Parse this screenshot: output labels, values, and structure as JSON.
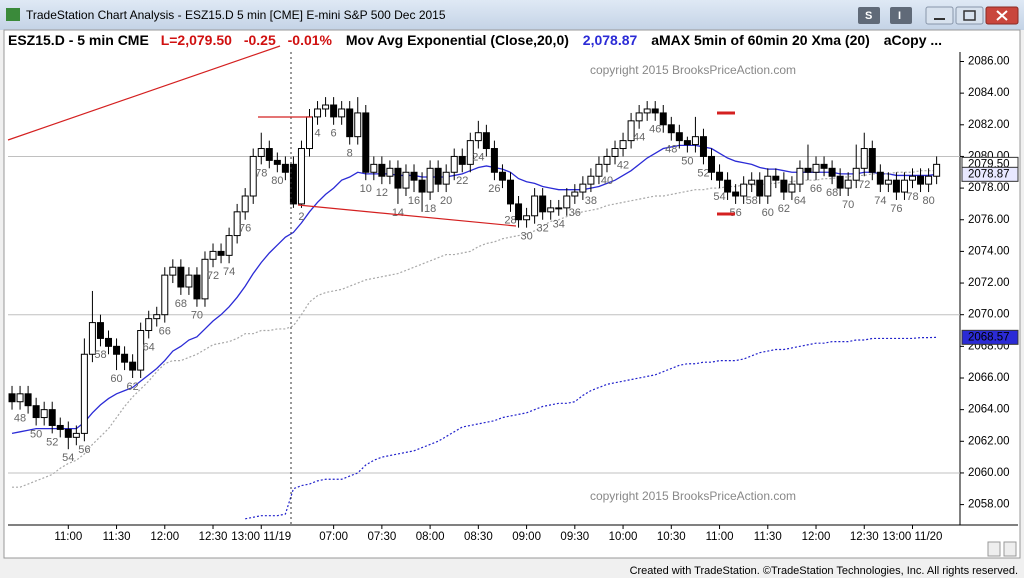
{
  "window": {
    "title": "TradeStation Chart Analysis - ESZ15.D 5 min [CME] E-mini S&P 500 Dec 2015",
    "footer": "Created with TradeStation. ©TradeStation Technologies, Inc. All rights reserved."
  },
  "header": {
    "symbol": "ESZ15.D - 5 min  CME",
    "last": "L=2,079.50",
    "change": "-0.25",
    "change_pct": "-0.01%",
    "ema_value": "2,078.87"
  },
  "chart_data": {
    "type": "candlestick",
    "watermark": "copyright 2015 BrooksPriceAction.com",
    "ylim": [
      2056.9,
      2086.6
    ],
    "yticks": [
      {
        "value": 2058,
        "label": "2058.00"
      },
      {
        "value": 2060,
        "label": "2060.00"
      },
      {
        "value": 2062,
        "label": "2062.00"
      },
      {
        "value": 2064,
        "label": "2064.00"
      },
      {
        "value": 2066,
        "label": "2066.00"
      },
      {
        "value": 2068,
        "label": "2068.00"
      },
      {
        "value": 2070,
        "label": "2070.00"
      },
      {
        "value": 2072,
        "label": "2072.00"
      },
      {
        "value": 2074,
        "label": "2074.00"
      },
      {
        "value": 2076,
        "label": "2076.00"
      },
      {
        "value": 2078,
        "label": "2078.00"
      },
      {
        "value": 2080,
        "label": "2080.00"
      },
      {
        "value": 2082,
        "label": "2082.00"
      },
      {
        "value": 2084,
        "label": "2084.00"
      },
      {
        "value": 2086,
        "label": "2086.00"
      }
    ],
    "grid_lines": [
      2060,
      2070,
      2080
    ],
    "categories": [
      null,
      null,
      null,
      null,
      null,
      null,
      null,
      "11:00",
      null,
      null,
      null,
      null,
      null,
      "11:30",
      null,
      null,
      null,
      null,
      null,
      "12:00",
      null,
      null,
      null,
      null,
      null,
      "12:30",
      null,
      null,
      null,
      null,
      null,
      "13:00 11/19",
      null,
      null,
      null,
      null,
      null,
      null,
      null,
      null,
      "07:00",
      null,
      null,
      null,
      null,
      null,
      "07:30",
      null,
      null,
      null,
      null,
      null,
      "08:00",
      null,
      null,
      null,
      null,
      null,
      "08:30",
      null,
      null,
      null,
      null,
      null,
      "09:00",
      null,
      null,
      null,
      null,
      null,
      "09:30",
      null,
      null,
      null,
      null,
      null,
      "10:00",
      null,
      null,
      null,
      null,
      null,
      "10:30",
      null,
      null,
      null,
      null,
      null,
      "11:00",
      null,
      null,
      null,
      null,
      null,
      "11:30",
      null,
      null,
      null,
      null,
      null,
      "12:00",
      null,
      null,
      null,
      null,
      null,
      "12:30",
      null,
      null,
      null,
      null,
      null,
      "13:00 11/20",
      null,
      null,
      null
    ],
    "ohlc": {
      "open": [
        2065.0,
        2064.5,
        2065.0,
        2064.25,
        2063.5,
        2064.0,
        2063.0,
        2062.75,
        2062.25,
        2062.5,
        2067.5,
        2069.5,
        2068.5,
        2068.0,
        2067.5,
        2067.0,
        2066.5,
        2069.0,
        2069.75,
        2070.0,
        2072.5,
        2073.0,
        2071.75,
        2072.5,
        2071.0,
        2073.5,
        2074.0,
        2073.75,
        2075.0,
        2076.5,
        2077.5,
        2080.0,
        2080.5,
        2079.75,
        2079.5,
        2079.5,
        2077.0,
        2080.5,
        2082.5,
        2083.0,
        2083.25,
        2082.5,
        2083.0,
        2081.25,
        2082.75,
        2079.0,
        2079.5,
        2078.75,
        2079.25,
        2078.0,
        2079.0,
        2078.5,
        2077.75,
        2079.25,
        2078.25,
        2079.0,
        2080.0,
        2079.5,
        2081.0,
        2081.5,
        2080.5,
        2079.0,
        2078.5,
        2077.0,
        2076.0,
        2076.25,
        2077.5,
        2076.5,
        2076.75,
        2076.75,
        2077.5,
        2077.75,
        2078.25,
        2078.75,
        2079.5,
        2080.0,
        2080.5,
        2081.0,
        2082.25,
        2082.75,
        2083.0,
        2082.75,
        2082.0,
        2081.5,
        2081.0,
        2080.75,
        2081.25,
        2080.0,
        2079.0,
        2078.5,
        2077.75,
        2077.5,
        2078.25,
        2078.5,
        2077.5,
        2078.75,
        2078.5,
        2077.75,
        2078.25,
        2079.25,
        2079.0,
        2079.5,
        2079.25,
        2078.75,
        2078.0,
        2078.5,
        2079.25,
        2080.5,
        2079.0,
        2078.25,
        2078.5,
        2077.75,
        2078.5,
        2078.75,
        2078.25,
        2078.75
      ],
      "high": [
        2065.5,
        2065.5,
        2065.5,
        2064.75,
        2064.5,
        2064.5,
        2063.5,
        2063.25,
        2063.0,
        2068.5,
        2071.5,
        2070.0,
        2069.0,
        2068.5,
        2068.0,
        2067.5,
        2069.5,
        2070.25,
        2070.5,
        2073.0,
        2073.5,
        2073.5,
        2073.0,
        2073.0,
        2074.0,
        2074.5,
        2074.5,
        2075.5,
        2077.0,
        2078.0,
        2080.5,
        2081.5,
        2081.0,
        2080.25,
        2080.0,
        2080.0,
        2081.0,
        2083.0,
        2083.5,
        2083.75,
        2083.75,
        2083.5,
        2083.5,
        2083.75,
        2083.25,
        2080.0,
        2080.0,
        2079.75,
        2079.75,
        2079.5,
        2079.5,
        2079.0,
        2079.75,
        2079.75,
        2079.5,
        2080.5,
        2080.5,
        2081.5,
        2082.25,
        2082.0,
        2081.0,
        2079.5,
        2079.0,
        2077.5,
        2076.75,
        2078.0,
        2078.0,
        2077.25,
        2077.25,
        2078.0,
        2078.25,
        2078.75,
        2079.25,
        2080.0,
        2080.5,
        2081.0,
        2081.5,
        2082.75,
        2083.25,
        2083.5,
        2083.5,
        2083.25,
        2082.5,
        2082.0,
        2081.25,
        2082.5,
        2081.75,
        2080.5,
        2079.5,
        2079.0,
        2078.25,
        2078.75,
        2079.0,
        2079.0,
        2079.25,
        2079.25,
        2079.0,
        2078.75,
        2079.75,
        2080.75,
        2080.0,
        2080.0,
        2079.75,
        2079.25,
        2079.0,
        2080.75,
        2081.5,
        2081.0,
        2079.5,
        2079.0,
        2079.0,
        2079.0,
        2079.25,
        2079.25,
        2079.25,
        2080.0
      ],
      "low": [
        2064.0,
        2064.0,
        2063.75,
        2063.0,
        2063.0,
        2062.5,
        2062.25,
        2061.5,
        2061.75,
        2062.0,
        2067.0,
        2068.0,
        2067.5,
        2066.5,
        2066.5,
        2066.0,
        2066.0,
        2068.5,
        2069.25,
        2069.5,
        2072.0,
        2071.25,
        2071.25,
        2070.5,
        2070.5,
        2073.0,
        2073.25,
        2073.25,
        2074.5,
        2076.0,
        2077.0,
        2079.5,
        2079.25,
        2079.0,
        2078.5,
        2076.75,
        2076.75,
        2080.0,
        2082.0,
        2082.5,
        2082.0,
        2082.0,
        2080.75,
        2080.75,
        2078.5,
        2078.5,
        2078.25,
        2078.25,
        2077.0,
        2077.5,
        2077.75,
        2076.5,
        2077.25,
        2077.75,
        2077.75,
        2078.5,
        2079.0,
        2079.0,
        2080.5,
        2080.0,
        2078.5,
        2078.0,
        2076.5,
        2075.5,
        2075.5,
        2075.75,
        2076.0,
        2076.0,
        2076.25,
        2076.25,
        2077.0,
        2077.25,
        2077.75,
        2078.25,
        2079.0,
        2079.5,
        2080.0,
        2080.5,
        2081.75,
        2082.25,
        2082.25,
        2081.5,
        2081.0,
        2080.5,
        2080.25,
        2080.25,
        2079.5,
        2078.5,
        2078.0,
        2077.25,
        2077.0,
        2077.0,
        2077.75,
        2077.0,
        2077.0,
        2078.0,
        2077.25,
        2077.25,
        2077.75,
        2078.5,
        2078.5,
        2078.75,
        2078.25,
        2077.5,
        2077.5,
        2078.0,
        2078.75,
        2078.5,
        2077.75,
        2077.75,
        2077.25,
        2077.25,
        2078.0,
        2077.75,
        2077.75,
        2078.25
      ],
      "close": [
        2064.5,
        2065.0,
        2064.25,
        2063.5,
        2064.0,
        2063.0,
        2062.75,
        2062.25,
        2062.5,
        2067.5,
        2069.5,
        2068.5,
        2068.0,
        2067.5,
        2067.0,
        2066.5,
        2069.0,
        2069.75,
        2070.0,
        2072.5,
        2073.0,
        2071.75,
        2072.5,
        2071.0,
        2073.5,
        2074.0,
        2073.75,
        2075.0,
        2076.5,
        2077.5,
        2080.0,
        2080.5,
        2079.75,
        2079.5,
        2079.0,
        2077.0,
        2080.5,
        2082.5,
        2083.0,
        2083.25,
        2082.5,
        2083.0,
        2081.25,
        2082.75,
        2079.0,
        2079.5,
        2078.75,
        2079.25,
        2078.0,
        2079.0,
        2078.5,
        2077.75,
        2079.25,
        2078.25,
        2079.0,
        2080.0,
        2079.5,
        2081.0,
        2081.5,
        2080.5,
        2079.0,
        2078.5,
        2077.0,
        2076.0,
        2076.25,
        2077.5,
        2076.5,
        2076.75,
        2076.75,
        2077.5,
        2077.75,
        2078.25,
        2078.75,
        2079.5,
        2080.0,
        2080.5,
        2081.0,
        2082.25,
        2082.75,
        2083.0,
        2082.75,
        2082.0,
        2081.5,
        2081.0,
        2080.75,
        2081.25,
        2080.0,
        2079.0,
        2078.5,
        2077.75,
        2077.5,
        2078.25,
        2078.5,
        2077.5,
        2078.75,
        2078.5,
        2077.75,
        2078.25,
        2079.25,
        2079.0,
        2079.5,
        2079.25,
        2078.75,
        2078.0,
        2078.5,
        2079.25,
        2080.5,
        2079.0,
        2078.25,
        2078.5,
        2077.75,
        2078.5,
        2078.75,
        2078.25,
        2078.75,
        2079.5
      ]
    },
    "up_color": "#ffffff",
    "down_color": "#000000",
    "wick_color": "#000000",
    "bar_labels": [
      null,
      48,
      null,
      50,
      null,
      52,
      null,
      54,
      null,
      56,
      null,
      58,
      null,
      60,
      null,
      62,
      null,
      64,
      null,
      66,
      null,
      68,
      null,
      70,
      null,
      72,
      null,
      74,
      null,
      76,
      null,
      78,
      null,
      80,
      null,
      null,
      2,
      null,
      4,
      null,
      6,
      null,
      8,
      null,
      10,
      null,
      12,
      null,
      14,
      null,
      16,
      null,
      18,
      null,
      20,
      null,
      22,
      null,
      24,
      null,
      26,
      null,
      28,
      null,
      30,
      null,
      32,
      null,
      34,
      null,
      36,
      null,
      38,
      null,
      40,
      null,
      42,
      null,
      44,
      null,
      46,
      null,
      48,
      null,
      50,
      null,
      52,
      null,
      54,
      null,
      56,
      null,
      58,
      null,
      60,
      null,
      62,
      null,
      64,
      null,
      66,
      null,
      68,
      null,
      70,
      null,
      72,
      null,
      74,
      null,
      76,
      null,
      78,
      null,
      80,
      null
    ],
    "series": [
      {
        "name": "Mov Avg Exponential (Close,20,0)",
        "color": "#2b2bd6",
        "dash": false,
        "values": [
          2062.5,
          2062.6,
          2062.7,
          2062.8,
          2062.8,
          2062.8,
          2062.8,
          2062.8,
          2062.8,
          2063.2,
          2063.8,
          2064.3,
          2064.7,
          2065.0,
          2065.2,
          2065.4,
          2065.8,
          2066.2,
          2066.6,
          2067.1,
          2067.7,
          2068.0,
          2068.4,
          2068.6,
          2069.1,
          2069.6,
          2070.0,
          2070.5,
          2071.1,
          2071.8,
          2072.6,
          2073.3,
          2073.9,
          2074.4,
          2074.9,
          2075.2,
          2075.8,
          2076.5,
          2077.1,
          2077.6,
          2078.0,
          2078.5,
          2078.7,
          2079.0,
          2078.9,
          2078.9,
          2078.9,
          2078.9,
          2078.8,
          2078.8,
          2078.8,
          2078.7,
          2078.7,
          2078.7,
          2078.7,
          2078.8,
          2078.9,
          2079.1,
          2079.3,
          2079.4,
          2079.3,
          2079.2,
          2079.0,
          2078.6,
          2078.4,
          2078.3,
          2078.1,
          2078.0,
          2077.9,
          2077.9,
          2077.9,
          2077.9,
          2078.0,
          2078.1,
          2078.3,
          2078.5,
          2078.8,
          2079.1,
          2079.5,
          2079.9,
          2080.2,
          2080.5,
          2080.6,
          2080.7,
          2080.7,
          2080.7,
          2080.6,
          2080.5,
          2080.2,
          2079.9,
          2079.7,
          2079.6,
          2079.5,
          2079.3,
          2079.2,
          2079.2,
          2079.1,
          2079.0,
          2079.0,
          2079.0,
          2079.0,
          2079.0,
          2079.0,
          2078.9,
          2078.9,
          2078.9,
          2079.0,
          2079.0,
          2078.9,
          2078.9,
          2078.8,
          2078.8,
          2078.8,
          2078.8,
          2078.8,
          2078.87
        ]
      },
      {
        "name": "aMAX 5min of 60min 20 Xma (20)",
        "color": "#a8a8a8",
        "dash": true,
        "values": [
          2059.1,
          2059.1,
          2059.3,
          2059.5,
          2059.7,
          2059.9,
          2060.3,
          2060.6,
          2060.8,
          2061.2,
          2061.8,
          2062.3,
          2062.8,
          2063.5,
          2064.2,
          2064.8,
          2065.3,
          2065.8,
          2066.4,
          2066.9,
          2067.1,
          2067.1,
          2067.3,
          2067.5,
          2067.8,
          2068.1,
          2068.2,
          2068.3,
          2068.5,
          2068.8,
          2068.8,
          2069.0,
          2069.0,
          2069.1,
          2069.1,
          2069.3,
          2070.0,
          2070.8,
          2071.2,
          2071.4,
          2071.5,
          2071.6,
          2071.8,
          2072.0,
          2072.2,
          2072.3,
          2072.4,
          2072.5,
          2072.6,
          2072.8,
          2073.0,
          2073.2,
          2073.4,
          2073.6,
          2073.8,
          2073.8,
          2073.9,
          2074.0,
          2074.3,
          2074.5,
          2074.6,
          2074.8,
          2074.9,
          2075.0,
          2075.1,
          2075.3,
          2075.6,
          2075.9,
          2076.0,
          2076.2,
          2076.4,
          2076.5,
          2076.6,
          2076.7,
          2076.9,
          2077.0,
          2077.1,
          2077.2,
          2077.3,
          2077.4,
          2077.5,
          2077.5,
          2077.6,
          2077.7,
          2077.8,
          2077.9,
          2077.9,
          2078.0,
          2078.0,
          2078.1,
          2078.1,
          2078.2,
          2078.2,
          2078.2,
          2078.3,
          2078.3,
          2078.4,
          2078.4,
          2078.5,
          2078.5,
          2078.5,
          2078.6,
          2078.6,
          2078.7,
          2078.7,
          2078.8,
          2078.8,
          2078.9,
          2078.9,
          2078.9,
          2079.0,
          2079.0,
          2079.0,
          2079.1,
          2079.1,
          2079.1
        ]
      },
      {
        "name": "aCopy ...",
        "color": "#2222cc",
        "dash": true,
        "values": [
          null,
          null,
          null,
          null,
          null,
          null,
          null,
          null,
          null,
          null,
          null,
          null,
          null,
          null,
          null,
          null,
          null,
          null,
          null,
          null,
          null,
          null,
          null,
          null,
          null,
          null,
          null,
          null,
          null,
          2057.1,
          2057.2,
          2057.3,
          2057.3,
          2057.3,
          2057.4,
          2059.0,
          2059.2,
          2059.3,
          2059.5,
          2059.6,
          2059.6,
          2059.6,
          2059.8,
          2060.0,
          2060.5,
          2060.8,
          2061.0,
          2061.1,
          2061.2,
          2061.3,
          2061.4,
          2061.6,
          2061.8,
          2062.0,
          2062.3,
          2062.6,
          2062.9,
          2063.0,
          2063.1,
          2063.2,
          2063.3,
          2063.5,
          2063.6,
          2063.7,
          2063.8,
          2064.0,
          2064.2,
          2064.3,
          2064.4,
          2064.4,
          2064.5,
          2064.9,
          2065.2,
          2065.4,
          2065.6,
          2065.7,
          2065.8,
          2065.9,
          2066.0,
          2066.1,
          2066.2,
          2066.4,
          2066.6,
          2066.8,
          2066.9,
          2066.9,
          2067.0,
          2067.0,
          2067.1,
          2067.1,
          2067.1,
          2067.2,
          2067.4,
          2067.6,
          2067.7,
          2067.8,
          2067.8,
          2067.9,
          2068.0,
          2068.1,
          2068.2,
          2068.2,
          2068.3,
          2068.3,
          2068.3,
          2068.4,
          2068.4,
          2068.5,
          2068.5,
          2068.5,
          2068.5,
          2068.5,
          2068.5,
          2068.55,
          2068.55,
          2068.57
        ]
      }
    ],
    "price_tags": [
      {
        "value": 2079.5,
        "label": "2079.50",
        "fill": "#ffffff",
        "text_color": "#000000"
      },
      {
        "value": 2078.87,
        "label": "2078.87",
        "fill": "#e8e8ff",
        "text_color": "#2b2bd6"
      },
      {
        "value": 2068.57,
        "label": "2068.57",
        "fill": "#2b2bd6",
        "text_color": "#ffffff"
      }
    ]
  }
}
